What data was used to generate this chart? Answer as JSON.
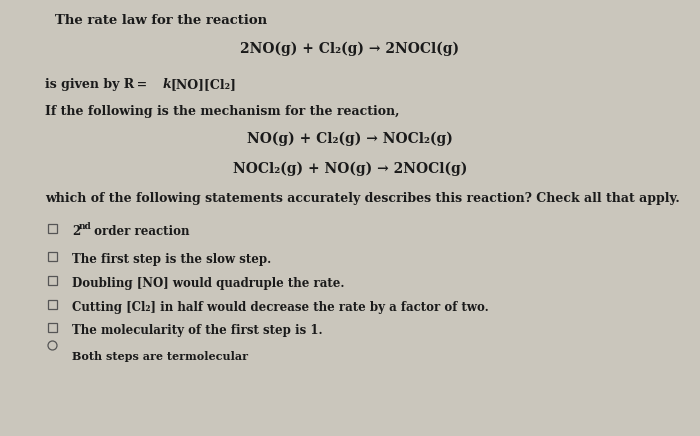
{
  "bg_color": "#cac6bc",
  "text_color": "#1a1a1a",
  "title_line": "The rate law for the reaction",
  "reaction_main": "2NO(g) + Cl₂(g) → 2NOCl(g)",
  "rate_law_pre": "is given by R = ",
  "rate_law_k": "k",
  "rate_law_post": "[NO][Cl₂]",
  "mechanism_intro": "If the following is the mechanism for the reaction,",
  "mech_step1": "NO(g) + Cl₂(g) → NOCl₂(g)",
  "mech_step2": "NOCl₂(g) + NO(g) → 2NOCl(g)",
  "question": "which of the following statements accurately describes this reaction? Check all that apply.",
  "choices": [
    "2nd order reaction",
    "The first step is the slow step.",
    "Doubling [NO] would quadruple the rate.",
    "Cutting [Cl₂] in half would decrease the rate by a factor of two.",
    "The molecularity of the first step is 1.",
    "Both steps are termolecular"
  ],
  "font_size_title": 9.5,
  "font_size_eq": 10,
  "font_size_body": 9,
  "font_size_choice": 8.5,
  "font_size_last": 8
}
